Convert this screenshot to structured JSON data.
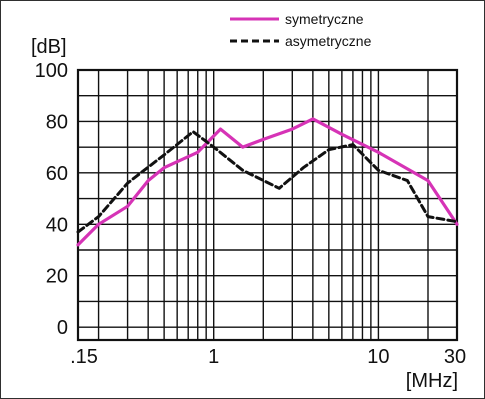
{
  "chart_data": {
    "type": "line",
    "title": "",
    "xlabel": "[MHz]",
    "ylabel": "[dB]",
    "x_scale": "log",
    "xlim": [
      0.15,
      30
    ],
    "ylim": [
      -5,
      100
    ],
    "grid": true,
    "legend_position": "top-right",
    "x_tick_labels": [
      {
        "value": 0.15,
        "label": ".15"
      },
      {
        "value": 1,
        "label": "1"
      },
      {
        "value": 10,
        "label": "10"
      },
      {
        "value": 30,
        "label": "30"
      }
    ],
    "y_tick_labels": [
      {
        "value": 0,
        "label": "0"
      },
      {
        "value": 20,
        "label": "20"
      },
      {
        "value": 40,
        "label": "40"
      },
      {
        "value": 60,
        "label": "60"
      },
      {
        "value": 80,
        "label": "80"
      },
      {
        "value": 100,
        "label": "100"
      }
    ],
    "series": [
      {
        "name": "symetryczne",
        "color": "#d633b6",
        "style": "solid",
        "points": [
          {
            "x": 0.15,
            "y": 32
          },
          {
            "x": 0.2,
            "y": 40
          },
          {
            "x": 0.3,
            "y": 47
          },
          {
            "x": 0.4,
            "y": 57
          },
          {
            "x": 0.5,
            "y": 62
          },
          {
            "x": 0.8,
            "y": 68
          },
          {
            "x": 1.1,
            "y": 77
          },
          {
            "x": 1.5,
            "y": 70
          },
          {
            "x": 2.0,
            "y": 73
          },
          {
            "x": 3.0,
            "y": 77
          },
          {
            "x": 4.0,
            "y": 81
          },
          {
            "x": 6.0,
            "y": 75
          },
          {
            "x": 10,
            "y": 68
          },
          {
            "x": 20,
            "y": 57
          },
          {
            "x": 30,
            "y": 40
          }
        ]
      },
      {
        "name": "asymetryczne",
        "color": "#111111",
        "style": "dashed",
        "points": [
          {
            "x": 0.15,
            "y": 37
          },
          {
            "x": 0.2,
            "y": 43
          },
          {
            "x": 0.3,
            "y": 56
          },
          {
            "x": 0.5,
            "y": 67
          },
          {
            "x": 0.75,
            "y": 76
          },
          {
            "x": 1.0,
            "y": 70
          },
          {
            "x": 1.5,
            "y": 61
          },
          {
            "x": 2.5,
            "y": 54
          },
          {
            "x": 3.5,
            "y": 62
          },
          {
            "x": 5.0,
            "y": 69
          },
          {
            "x": 7.0,
            "y": 71
          },
          {
            "x": 10,
            "y": 61
          },
          {
            "x": 15,
            "y": 57
          },
          {
            "x": 20,
            "y": 43
          },
          {
            "x": 30,
            "y": 41
          }
        ]
      }
    ]
  }
}
